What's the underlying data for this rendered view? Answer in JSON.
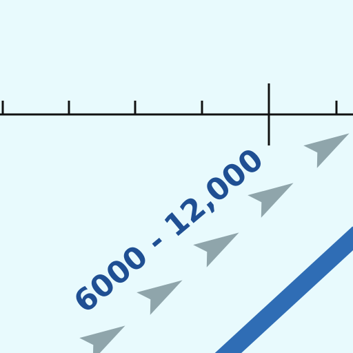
{
  "map": {
    "route_label": "6000 - 12,000",
    "colors": {
      "background": "#e8fafd",
      "scale_line": "#111111",
      "arrow": "#8fa5ab",
      "route_band": "#2f6db5",
      "label": "#1f4f93"
    }
  }
}
